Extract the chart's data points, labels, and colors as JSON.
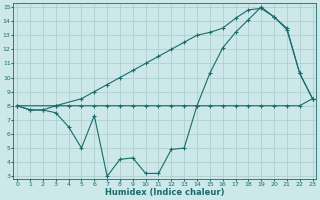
{
  "xlabel": "Humidex (Indice chaleur)",
  "line1_x": [
    0,
    1,
    2,
    3,
    4,
    5,
    6,
    7,
    8,
    9,
    10,
    11,
    12,
    13,
    14,
    15,
    16,
    17,
    18,
    19,
    20,
    21,
    22,
    23
  ],
  "line1_y": [
    8,
    7.7,
    7.7,
    8.0,
    8.0,
    8.0,
    8.0,
    8.0,
    8.0,
    8.0,
    8.0,
    8.0,
    8.0,
    8.0,
    8.0,
    8.0,
    8.0,
    8.0,
    8.0,
    8.0,
    8.0,
    8.0,
    8.0,
    8.5
  ],
  "line2_x": [
    0,
    1,
    2,
    3,
    4,
    5,
    6,
    7,
    8,
    9,
    10,
    11,
    12,
    13,
    14,
    15,
    16,
    17,
    18,
    19,
    20,
    21,
    22,
    23
  ],
  "line2_y": [
    8,
    7.7,
    7.7,
    7.5,
    6.5,
    5.0,
    7.3,
    3.0,
    4.2,
    4.3,
    3.2,
    3.2,
    4.9,
    5.0,
    8.0,
    10.3,
    12.1,
    13.2,
    14.1,
    15.0,
    14.3,
    13.4,
    10.3,
    8.5
  ],
  "line3_x": [
    0,
    3,
    5,
    6,
    7,
    8,
    9,
    10,
    11,
    12,
    13,
    14,
    15,
    16,
    17,
    18,
    19,
    20,
    21,
    22,
    23
  ],
  "line3_y": [
    8,
    8.0,
    8.5,
    9.0,
    9.5,
    10.0,
    10.5,
    11.0,
    11.5,
    12.0,
    12.5,
    13.0,
    13.2,
    13.5,
    14.2,
    14.8,
    14.9,
    14.3,
    13.5,
    10.3,
    8.5
  ],
  "color": "#1a6b6b",
  "bg_color": "#cce8e8",
  "grid_color": "#aacccc",
  "xlim": [
    0,
    23
  ],
  "ylim": [
    3,
    15
  ],
  "yticks": [
    3,
    4,
    5,
    6,
    7,
    8,
    9,
    10,
    11,
    12,
    13,
    14,
    15
  ],
  "xticks": [
    0,
    1,
    2,
    3,
    4,
    5,
    6,
    7,
    8,
    9,
    10,
    11,
    12,
    13,
    14,
    15,
    16,
    17,
    18,
    19,
    20,
    21,
    22,
    23
  ]
}
